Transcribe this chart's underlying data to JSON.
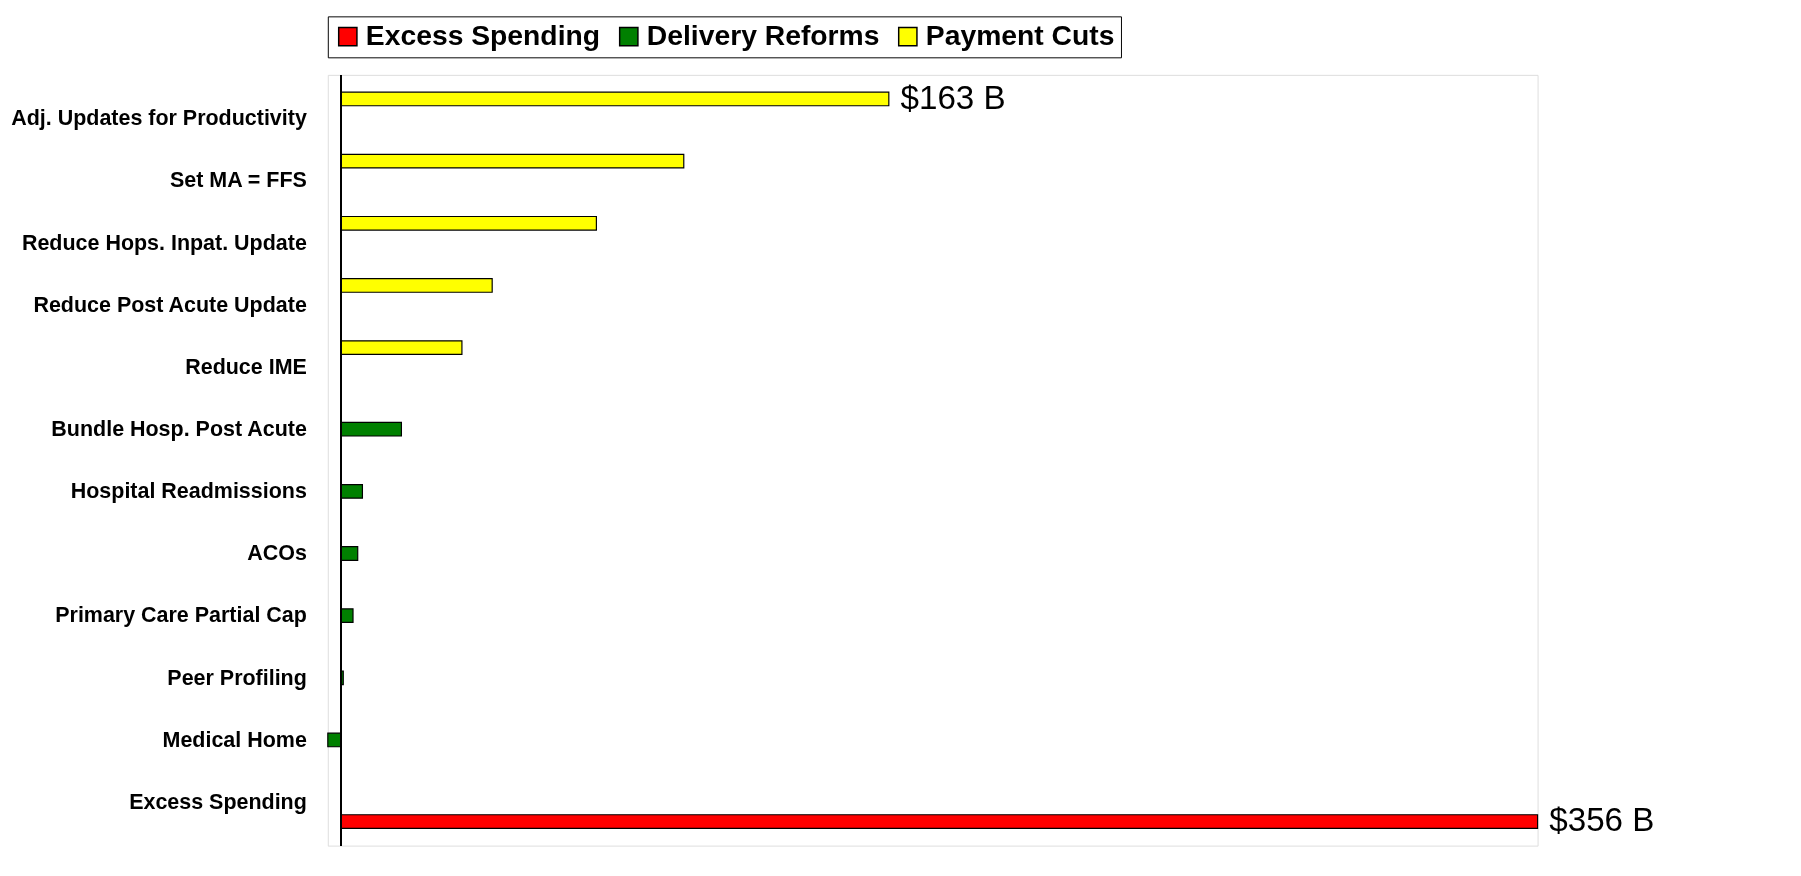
{
  "chart_data": {
    "type": "bar",
    "orientation": "horizontal",
    "legend": "top",
    "tick_labels": "y",
    "categories": [
      "Adj. Updates for Productivity",
      "Set MA = FFS",
      "Reduce Hops. Inpat. Update",
      "Reduce Post Acute Update",
      "Reduce IME",
      "Bundle Hosp. Post Acute",
      "Hospital Readmissions",
      "ACOs",
      "Primary Care Partial Cap",
      "Peer Profiling",
      "Medical Home",
      "Excess Spending"
    ],
    "series": [
      {
        "name": "Excess Spending",
        "color": "#ff0000",
        "values": [
          null,
          null,
          null,
          null,
          null,
          null,
          null,
          null,
          null,
          null,
          null,
          356
        ],
        "value_labels": [
          null,
          null,
          null,
          null,
          null,
          null,
          null,
          null,
          null,
          null,
          null,
          "$356 B"
        ]
      },
      {
        "name": "Delivery Reforms",
        "color": "#008000",
        "values": [
          null,
          null,
          null,
          null,
          null,
          18,
          6.4,
          5,
          3.6,
          0.7,
          -3.9,
          null
        ]
      },
      {
        "name": "Payment Cuts",
        "color": "#ffff00",
        "values": [
          163,
          102,
          76,
          45,
          36,
          null,
          null,
          null,
          null,
          null,
          null,
          null
        ],
        "value_labels": [
          "$163 B",
          null,
          null,
          null,
          null,
          null,
          null,
          null,
          null,
          null,
          null,
          null
        ]
      }
    ]
  }
}
